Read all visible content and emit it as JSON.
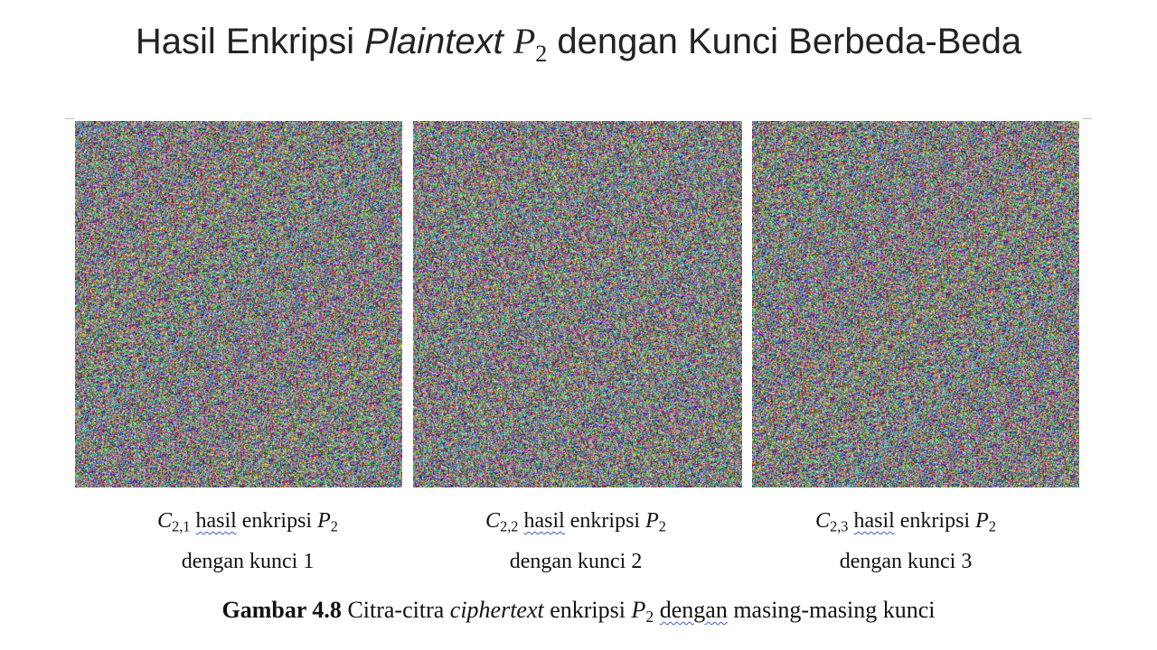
{
  "slide": {
    "title_prefix": "Hasil Enkripsi ",
    "title_italic": "Plaintext",
    "title_math_var": "P",
    "title_math_sub": "2",
    "title_suffix": " dengan Kunci Berbeda-Beda"
  },
  "panels": [
    {
      "cipher_var": "C",
      "cipher_sub": "2,1",
      "word_hasil": "hasil",
      "mid_text": " enkripsi ",
      "plain_var": "P",
      "plain_sub": "2",
      "line2": "dengan kunci 1"
    },
    {
      "cipher_var": "C",
      "cipher_sub": "2,2",
      "word_hasil": "hasil",
      "mid_text": " enkripsi ",
      "plain_var": "P",
      "plain_sub": "2",
      "line2": "dengan kunci 2"
    },
    {
      "cipher_var": "C",
      "cipher_sub": "2,3",
      "word_hasil": "hasil",
      "mid_text": " enkripsi ",
      "plain_var": "P",
      "plain_sub": "2",
      "line2": "dengan kunci 3"
    }
  ],
  "figure_caption": {
    "label": "Gambar 4.8",
    "text1": " Citra-citra ",
    "italic": "ciphertext",
    "text2": " enkripsi ",
    "var": "P",
    "sub": "2",
    "word_dengan": "dengan",
    "text3": " masing-masing kunci"
  },
  "colors": {
    "noise_base": "#8a7f7f",
    "spellcheck_underline": "#3a5bd6"
  }
}
